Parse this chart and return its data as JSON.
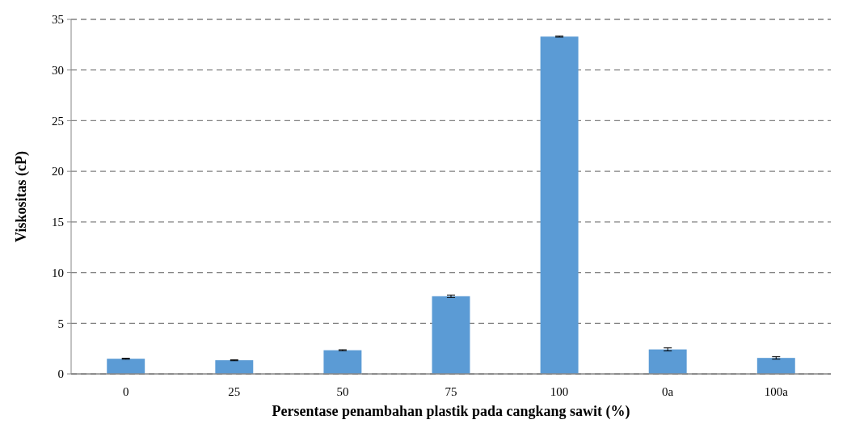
{
  "chart_data": {
    "type": "bar",
    "xlabel": "Persentase penambahan plastik pada cangkang sawit (%)",
    "ylabel": "Viskositas (cP)",
    "categories": [
      "0",
      "25",
      "50",
      "75",
      "100",
      "0a",
      "100a"
    ],
    "values": [
      1.5,
      1.35,
      2.34,
      7.67,
      33.3,
      2.42,
      1.58
    ],
    "errors": [
      0.05,
      0.05,
      0.05,
      0.12,
      0.05,
      0.15,
      0.12
    ],
    "color": "#5b9bd5",
    "ylim": [
      0,
      35
    ],
    "yticks": [
      0,
      5,
      10,
      15,
      20,
      25,
      30,
      35
    ],
    "grid": "y"
  }
}
